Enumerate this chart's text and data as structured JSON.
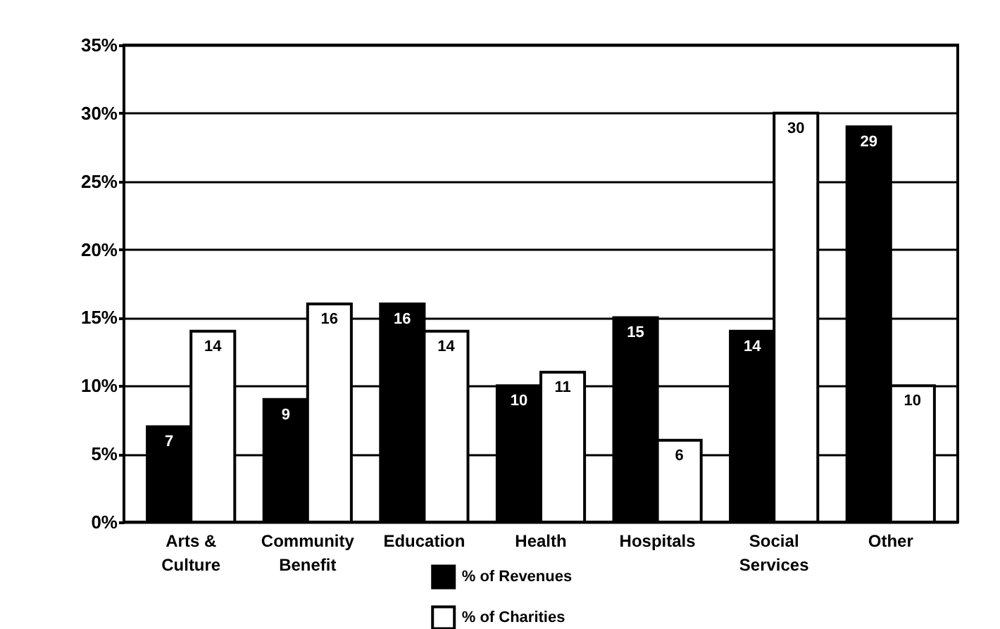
{
  "chart_data": {
    "type": "bar",
    "categories": [
      "Arts & Culture",
      "Community Benefit",
      "Education",
      "Health",
      "Hospitals",
      "Social Services",
      "Other"
    ],
    "series": [
      {
        "name": "% of Revenues",
        "color": "#000000",
        "values": [
          7,
          9,
          16,
          10,
          15,
          14,
          29
        ]
      },
      {
        "name": "% of Charities",
        "color": "#ffffff",
        "values": [
          14,
          16,
          14,
          11,
          6,
          30,
          10
        ]
      }
    ],
    "ylim": [
      0,
      35
    ],
    "yticks": [
      {
        "value": 0,
        "label": "0%"
      },
      {
        "value": 5,
        "label": "5%"
      },
      {
        "value": 10,
        "label": "10%"
      },
      {
        "value": 15,
        "label": "15%"
      },
      {
        "value": 20,
        "label": "20%"
      },
      {
        "value": 25,
        "label": "25%"
      },
      {
        "value": 30,
        "label": "30%"
      },
      {
        "value": 35,
        "label": "35%"
      }
    ],
    "grid": "y",
    "legend": "bottom",
    "data_labels": true
  }
}
